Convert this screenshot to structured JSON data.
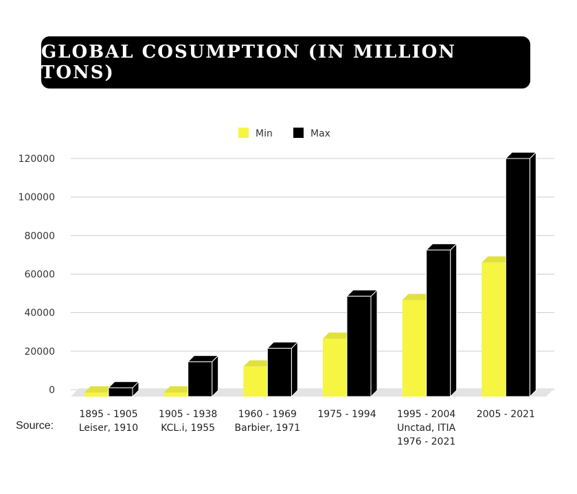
{
  "title": "GLOBAL COSUMPTION (IN MILLION TONS)",
  "source_label": "Source:",
  "chart_data": {
    "type": "bar",
    "categories": [
      "1895 - 1905",
      "1905 - 1938",
      "1960 - 1969",
      "1975 - 1994",
      "1995 - 2004",
      "2005 - 2021"
    ],
    "category_sources": [
      [
        "Leiser, 1910"
      ],
      [
        "KCL.i, 1955"
      ],
      [
        "Barbier, 1971"
      ],
      [],
      [
        "Unctad, ITIA",
        "1976 - 2021"
      ],
      []
    ],
    "series": [
      {
        "name": "Min",
        "color": "#f5f542",
        "values": [
          -2000,
          -1500,
          12000,
          26500,
          46500,
          66000
        ]
      },
      {
        "name": "Max",
        "color": "#000000",
        "values": [
          1000,
          14500,
          21500,
          48500,
          72500,
          120000
        ]
      }
    ],
    "yticks": [
      0,
      20000,
      40000,
      60000,
      80000,
      100000,
      120000
    ],
    "ylim": [
      0,
      120000
    ],
    "grid": true,
    "legend_position": "top-center",
    "style": "3d-bar"
  }
}
